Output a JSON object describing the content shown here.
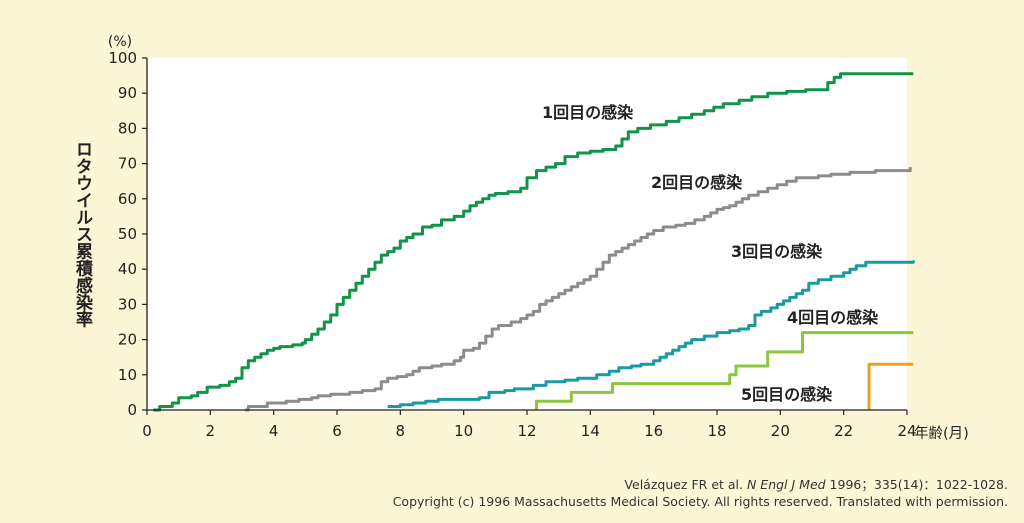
{
  "chart_data": {
    "type": "line",
    "title": "",
    "ylabel": "ロタウイルス累積感染率",
    "yunit": "(%)",
    "xunit": "年齢(月)",
    "xlim": [
      0,
      24
    ],
    "ylim": [
      0,
      100
    ],
    "xticks": [
      "0",
      "2",
      "4",
      "6",
      "8",
      "10",
      "12",
      "14",
      "16",
      "18",
      "20",
      "22",
      "24"
    ],
    "yticks": [
      "0",
      "10",
      "20",
      "30",
      "40",
      "50",
      "60",
      "70",
      "80",
      "90",
      "100"
    ],
    "grid": false,
    "series": [
      {
        "name": "1回目の感染",
        "color": "#12934a",
        "points": [
          [
            0.2,
            0
          ],
          [
            0.4,
            1
          ],
          [
            0.8,
            2
          ],
          [
            1.0,
            3.5
          ],
          [
            1.4,
            4
          ],
          [
            1.6,
            5
          ],
          [
            1.9,
            6.5
          ],
          [
            2.3,
            7
          ],
          [
            2.6,
            8
          ],
          [
            2.8,
            9
          ],
          [
            3.0,
            12
          ],
          [
            3.2,
            14
          ],
          [
            3.4,
            15
          ],
          [
            3.6,
            16
          ],
          [
            3.8,
            17
          ],
          [
            4.0,
            17.5
          ],
          [
            4.2,
            18
          ],
          [
            4.6,
            18.5
          ],
          [
            4.9,
            19
          ],
          [
            5.0,
            20
          ],
          [
            5.2,
            21.5
          ],
          [
            5.4,
            23
          ],
          [
            5.6,
            25
          ],
          [
            5.8,
            27
          ],
          [
            6.0,
            30
          ],
          [
            6.2,
            32
          ],
          [
            6.4,
            34
          ],
          [
            6.6,
            36
          ],
          [
            6.8,
            38
          ],
          [
            7.0,
            40
          ],
          [
            7.2,
            42
          ],
          [
            7.4,
            44
          ],
          [
            7.6,
            45
          ],
          [
            7.8,
            46
          ],
          [
            8.0,
            48
          ],
          [
            8.2,
            49
          ],
          [
            8.4,
            50
          ],
          [
            8.7,
            52
          ],
          [
            9.0,
            52.5
          ],
          [
            9.3,
            54
          ],
          [
            9.7,
            55
          ],
          [
            10.0,
            56.5
          ],
          [
            10.2,
            58
          ],
          [
            10.4,
            59
          ],
          [
            10.6,
            60
          ],
          [
            10.8,
            61
          ],
          [
            11.0,
            61.5
          ],
          [
            11.4,
            62
          ],
          [
            11.8,
            63
          ],
          [
            12.0,
            66
          ],
          [
            12.3,
            68
          ],
          [
            12.6,
            69
          ],
          [
            12.9,
            70
          ],
          [
            13.2,
            72
          ],
          [
            13.6,
            73
          ],
          [
            14.0,
            73.5
          ],
          [
            14.4,
            74
          ],
          [
            14.8,
            75
          ],
          [
            15.0,
            77
          ],
          [
            15.2,
            79
          ],
          [
            15.5,
            80
          ],
          [
            15.9,
            81
          ],
          [
            16.4,
            82
          ],
          [
            16.8,
            83
          ],
          [
            17.2,
            84
          ],
          [
            17.6,
            85
          ],
          [
            17.9,
            86
          ],
          [
            18.2,
            87
          ],
          [
            18.7,
            88
          ],
          [
            19.1,
            89
          ],
          [
            19.6,
            90
          ],
          [
            20.2,
            90.5
          ],
          [
            20.8,
            91
          ],
          [
            21.5,
            93
          ],
          [
            21.7,
            94.5
          ],
          [
            21.9,
            95.5
          ],
          [
            24.2,
            95.5
          ]
        ]
      },
      {
        "name": "2回目の感染",
        "color": "#8c8c8c",
        "points": [
          [
            3.1,
            0
          ],
          [
            3.2,
            1
          ],
          [
            3.8,
            2
          ],
          [
            4.4,
            2.5
          ],
          [
            4.8,
            3
          ],
          [
            5.2,
            3.5
          ],
          [
            5.4,
            4
          ],
          [
            5.8,
            4.5
          ],
          [
            6.4,
            5
          ],
          [
            6.8,
            5.5
          ],
          [
            7.2,
            6
          ],
          [
            7.4,
            8
          ],
          [
            7.6,
            9
          ],
          [
            7.9,
            9.5
          ],
          [
            8.2,
            10
          ],
          [
            8.4,
            11
          ],
          [
            8.6,
            12
          ],
          [
            9.0,
            12.5
          ],
          [
            9.3,
            13
          ],
          [
            9.7,
            14
          ],
          [
            9.9,
            15
          ],
          [
            10.0,
            17
          ],
          [
            10.3,
            17.5
          ],
          [
            10.5,
            19
          ],
          [
            10.7,
            21
          ],
          [
            10.9,
            23
          ],
          [
            11.1,
            24
          ],
          [
            11.5,
            25
          ],
          [
            11.8,
            26
          ],
          [
            12.0,
            27
          ],
          [
            12.2,
            28
          ],
          [
            12.4,
            30
          ],
          [
            12.6,
            31
          ],
          [
            12.8,
            32
          ],
          [
            13.0,
            33
          ],
          [
            13.2,
            34
          ],
          [
            13.4,
            35
          ],
          [
            13.6,
            36
          ],
          [
            13.8,
            37
          ],
          [
            14.0,
            38
          ],
          [
            14.2,
            40
          ],
          [
            14.4,
            42
          ],
          [
            14.6,
            44
          ],
          [
            14.8,
            45
          ],
          [
            15.0,
            46
          ],
          [
            15.2,
            47
          ],
          [
            15.4,
            48
          ],
          [
            15.6,
            49
          ],
          [
            15.8,
            50
          ],
          [
            16.0,
            51
          ],
          [
            16.3,
            52
          ],
          [
            16.7,
            52.5
          ],
          [
            17.0,
            53
          ],
          [
            17.3,
            54
          ],
          [
            17.6,
            55
          ],
          [
            17.8,
            56
          ],
          [
            18.0,
            57
          ],
          [
            18.2,
            57.5
          ],
          [
            18.4,
            58
          ],
          [
            18.6,
            59
          ],
          [
            18.8,
            60
          ],
          [
            19.0,
            61
          ],
          [
            19.3,
            62
          ],
          [
            19.6,
            63
          ],
          [
            19.9,
            64
          ],
          [
            20.2,
            65
          ],
          [
            20.5,
            66
          ],
          [
            21.2,
            66.5
          ],
          [
            21.6,
            67
          ],
          [
            22.2,
            67.5
          ],
          [
            23.0,
            68
          ],
          [
            24.0,
            68
          ],
          [
            24.1,
            69
          ]
        ]
      },
      {
        "name": "3回目の感染",
        "color": "#1a9aa0",
        "points": [
          [
            7.6,
            1
          ],
          [
            8.0,
            1.5
          ],
          [
            8.4,
            2
          ],
          [
            8.8,
            2.5
          ],
          [
            9.2,
            3
          ],
          [
            10.5,
            3.5
          ],
          [
            10.8,
            5
          ],
          [
            11.3,
            5.5
          ],
          [
            11.6,
            6
          ],
          [
            12.2,
            7
          ],
          [
            12.6,
            8
          ],
          [
            13.2,
            8.5
          ],
          [
            13.6,
            9
          ],
          [
            14.2,
            10
          ],
          [
            14.6,
            11
          ],
          [
            14.9,
            12
          ],
          [
            15.3,
            12.5
          ],
          [
            15.6,
            13
          ],
          [
            16.0,
            14
          ],
          [
            16.2,
            15
          ],
          [
            16.4,
            16
          ],
          [
            16.6,
            17
          ],
          [
            16.8,
            18
          ],
          [
            17.0,
            19
          ],
          [
            17.2,
            20
          ],
          [
            17.6,
            21
          ],
          [
            18.0,
            22
          ],
          [
            18.4,
            22.5
          ],
          [
            18.7,
            23
          ],
          [
            19.0,
            24
          ],
          [
            19.2,
            27
          ],
          [
            19.4,
            28
          ],
          [
            19.7,
            29
          ],
          [
            19.9,
            30
          ],
          [
            20.1,
            31
          ],
          [
            20.3,
            32
          ],
          [
            20.5,
            33
          ],
          [
            20.7,
            34
          ],
          [
            20.9,
            36
          ],
          [
            21.2,
            37
          ],
          [
            21.6,
            38
          ],
          [
            22.0,
            39
          ],
          [
            22.2,
            40
          ],
          [
            22.4,
            41
          ],
          [
            22.7,
            42
          ],
          [
            24.2,
            42.5
          ]
        ]
      },
      {
        "name": "4回目の感染",
        "color": "#8cc63f",
        "points": [
          [
            12.3,
            0
          ],
          [
            12.3,
            2.5
          ],
          [
            13.4,
            2.5
          ],
          [
            13.4,
            5
          ],
          [
            14.7,
            5
          ],
          [
            14.7,
            7.5
          ],
          [
            18.4,
            7.5
          ],
          [
            18.4,
            10
          ],
          [
            18.6,
            10
          ],
          [
            18.6,
            12.5
          ],
          [
            19.6,
            12.5
          ],
          [
            19.6,
            16.5
          ],
          [
            20.7,
            16.5
          ],
          [
            20.7,
            22
          ],
          [
            24.2,
            22
          ]
        ]
      },
      {
        "name": "5回目の感染",
        "color": "#f0a020",
        "points": [
          [
            22.8,
            0
          ],
          [
            22.8,
            13
          ],
          [
            24.2,
            13
          ]
        ]
      }
    ]
  },
  "labels": {
    "s1": "1回目の感染",
    "s2": "2回目の感染",
    "s3": "3回目の感染",
    "s4": "4回目の感染",
    "s5": "5回目の感染"
  },
  "citation": {
    "line1_pre": "Velázquez FR et al. ",
    "line1_journal": "N Engl J Med",
    "line1_post": " 1996；335(14)：1022-1028.",
    "line2": "Copyright (c) 1996 Massachusetts Medical Society. All rights reserved. Translated with permission."
  }
}
